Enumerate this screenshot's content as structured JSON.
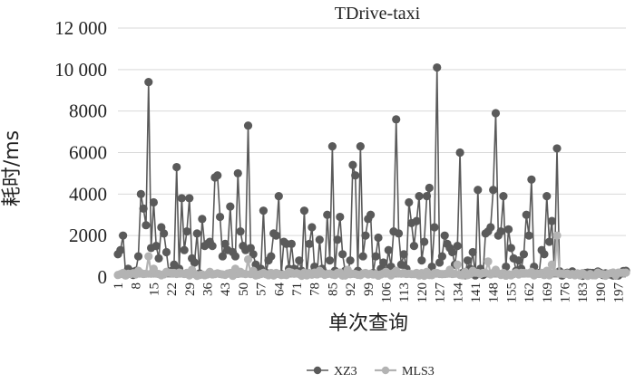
{
  "chart_data": {
    "type": "line",
    "title": "TDrive-taxi",
    "xlabel": "单次查询",
    "ylabel": "耗时/ms",
    "ylim": [
      0,
      12000
    ],
    "yticks": [
      0,
      2000,
      4000,
      6000,
      8000,
      10000,
      12000
    ],
    "ytick_labels": [
      "0",
      "2000",
      "4000",
      "6000",
      "8000",
      "10 000",
      "12 000"
    ],
    "xlim": [
      1,
      200
    ],
    "xticks": [
      1,
      8,
      15,
      22,
      29,
      36,
      43,
      50,
      57,
      64,
      71,
      78,
      85,
      92,
      99,
      106,
      113,
      120,
      127,
      134,
      141,
      148,
      155,
      162,
      169,
      176,
      183,
      190,
      197
    ],
    "grid": true,
    "legend_position": "bottom",
    "colors": {
      "XZ3": "#5a5a5a",
      "MLS3": "#b3b3b3",
      "grid": "#d9d9d9"
    },
    "series": [
      {
        "name": "XZ3",
        "anchors": [
          [
            1,
            1100
          ],
          [
            2,
            1300
          ],
          [
            3,
            2000
          ],
          [
            5,
            400
          ],
          [
            7,
            100
          ],
          [
            8,
            300
          ],
          [
            9,
            1000
          ],
          [
            10,
            4000
          ],
          [
            11,
            3300
          ],
          [
            12,
            2500
          ],
          [
            13,
            9400
          ],
          [
            14,
            1400
          ],
          [
            15,
            3600
          ],
          [
            16,
            1500
          ],
          [
            17,
            900
          ],
          [
            18,
            2400
          ],
          [
            19,
            2100
          ],
          [
            20,
            1200
          ],
          [
            22,
            300
          ],
          [
            23,
            600
          ],
          [
            24,
            5300
          ],
          [
            25,
            400
          ],
          [
            26,
            3800
          ],
          [
            27,
            1300
          ],
          [
            28,
            2200
          ],
          [
            29,
            3800
          ],
          [
            30,
            900
          ],
          [
            31,
            700
          ],
          [
            32,
            2100
          ],
          [
            34,
            2800
          ],
          [
            35,
            1500
          ],
          [
            36,
            1600
          ],
          [
            37,
            1700
          ],
          [
            38,
            1500
          ],
          [
            39,
            4800
          ],
          [
            40,
            4900
          ],
          [
            41,
            2900
          ],
          [
            42,
            1000
          ],
          [
            43,
            1600
          ],
          [
            44,
            1300
          ],
          [
            45,
            3400
          ],
          [
            46,
            1200
          ],
          [
            47,
            1000
          ],
          [
            48,
            5000
          ],
          [
            49,
            2200
          ],
          [
            50,
            1500
          ],
          [
            51,
            1300
          ],
          [
            52,
            7300
          ],
          [
            53,
            1400
          ],
          [
            54,
            1100
          ],
          [
            55,
            600
          ],
          [
            56,
            300
          ],
          [
            57,
            400
          ],
          [
            58,
            3200
          ],
          [
            60,
            800
          ],
          [
            61,
            1000
          ],
          [
            62,
            2100
          ],
          [
            63,
            2000
          ],
          [
            64,
            3900
          ],
          [
            66,
            1700
          ],
          [
            67,
            1600
          ],
          [
            68,
            400
          ],
          [
            69,
            1600
          ],
          [
            70,
            400
          ],
          [
            71,
            300
          ],
          [
            72,
            800
          ],
          [
            73,
            300
          ],
          [
            74,
            3200
          ],
          [
            76,
            1600
          ],
          [
            77,
            2400
          ],
          [
            78,
            500
          ],
          [
            80,
            1800
          ],
          [
            81,
            400
          ],
          [
            82,
            200
          ],
          [
            83,
            3000
          ],
          [
            84,
            800
          ],
          [
            85,
            6300
          ],
          [
            86,
            300
          ],
          [
            87,
            1800
          ],
          [
            88,
            2900
          ],
          [
            89,
            1100
          ],
          [
            90,
            300
          ],
          [
            92,
            800
          ],
          [
            93,
            5400
          ],
          [
            94,
            4900
          ],
          [
            95,
            300
          ],
          [
            96,
            6300
          ],
          [
            97,
            1000
          ],
          [
            98,
            2000
          ],
          [
            99,
            2800
          ],
          [
            100,
            3000
          ],
          [
            101,
            200
          ],
          [
            102,
            1000
          ],
          [
            103,
            1900
          ],
          [
            104,
            400
          ],
          [
            105,
            700
          ],
          [
            106,
            300
          ],
          [
            107,
            1300
          ],
          [
            108,
            500
          ],
          [
            109,
            2200
          ],
          [
            110,
            7600
          ],
          [
            111,
            2100
          ],
          [
            112,
            600
          ],
          [
            113,
            1100
          ],
          [
            114,
            400
          ],
          [
            115,
            3600
          ],
          [
            116,
            2600
          ],
          [
            117,
            1500
          ],
          [
            118,
            2700
          ],
          [
            119,
            3900
          ],
          [
            120,
            800
          ],
          [
            121,
            1700
          ],
          [
            122,
            3900
          ],
          [
            123,
            4300
          ],
          [
            124,
            500
          ],
          [
            125,
            2400
          ],
          [
            126,
            10100
          ],
          [
            127,
            700
          ],
          [
            128,
            1000
          ],
          [
            129,
            2000
          ],
          [
            130,
            1600
          ],
          [
            131,
            1400
          ],
          [
            132,
            1200
          ],
          [
            133,
            600
          ],
          [
            134,
            1500
          ],
          [
            135,
            6000
          ],
          [
            136,
            200
          ],
          [
            138,
            800
          ],
          [
            139,
            400
          ],
          [
            140,
            1200
          ],
          [
            142,
            4200
          ],
          [
            143,
            400
          ],
          [
            144,
            100
          ],
          [
            145,
            2100
          ],
          [
            146,
            2200
          ],
          [
            147,
            2400
          ],
          [
            148,
            4200
          ],
          [
            149,
            7900
          ],
          [
            150,
            2000
          ],
          [
            151,
            2200
          ],
          [
            152,
            3900
          ],
          [
            153,
            500
          ],
          [
            154,
            2300
          ],
          [
            155,
            1400
          ],
          [
            156,
            900
          ],
          [
            157,
            300
          ],
          [
            158,
            800
          ],
          [
            159,
            400
          ],
          [
            160,
            1100
          ],
          [
            161,
            3000
          ],
          [
            162,
            2000
          ],
          [
            163,
            4700
          ],
          [
            164,
            500
          ],
          [
            166,
            200
          ],
          [
            167,
            1300
          ],
          [
            168,
            1100
          ],
          [
            169,
            3900
          ],
          [
            170,
            1700
          ],
          [
            171,
            2700
          ],
          [
            172,
            200
          ],
          [
            173,
            6200
          ]
        ]
      },
      {
        "name": "MLS3",
        "anchors": [
          [
            1,
            100
          ],
          [
            3,
            200
          ],
          [
            6,
            150
          ],
          [
            9,
            300
          ],
          [
            13,
            1000
          ],
          [
            15,
            400
          ],
          [
            17,
            150
          ],
          [
            20,
            250
          ],
          [
            23,
            200
          ],
          [
            27,
            150
          ],
          [
            30,
            350
          ],
          [
            33,
            100
          ],
          [
            37,
            250
          ],
          [
            41,
            150
          ],
          [
            45,
            200
          ],
          [
            47,
            400
          ],
          [
            49,
            250
          ],
          [
            52,
            850
          ],
          [
            54,
            300
          ],
          [
            57,
            150
          ],
          [
            61,
            200
          ],
          [
            64,
            150
          ],
          [
            68,
            250
          ],
          [
            72,
            150
          ],
          [
            76,
            200
          ],
          [
            80,
            300
          ],
          [
            83,
            150
          ],
          [
            87,
            200
          ],
          [
            91,
            350
          ],
          [
            94,
            150
          ],
          [
            98,
            200
          ],
          [
            102,
            150
          ],
          [
            106,
            250
          ],
          [
            110,
            300
          ],
          [
            114,
            150
          ],
          [
            118,
            200
          ],
          [
            122,
            250
          ],
          [
            126,
            200
          ],
          [
            129,
            150
          ],
          [
            131,
            350
          ],
          [
            134,
            600
          ],
          [
            137,
            250
          ],
          [
            140,
            300
          ],
          [
            143,
            150
          ],
          [
            146,
            750
          ],
          [
            149,
            350
          ],
          [
            152,
            200
          ],
          [
            156,
            150
          ],
          [
            160,
            200
          ],
          [
            163,
            250
          ],
          [
            166,
            150
          ],
          [
            169,
            300
          ],
          [
            171,
            600
          ],
          [
            173,
            2000
          ]
        ]
      }
    ]
  }
}
